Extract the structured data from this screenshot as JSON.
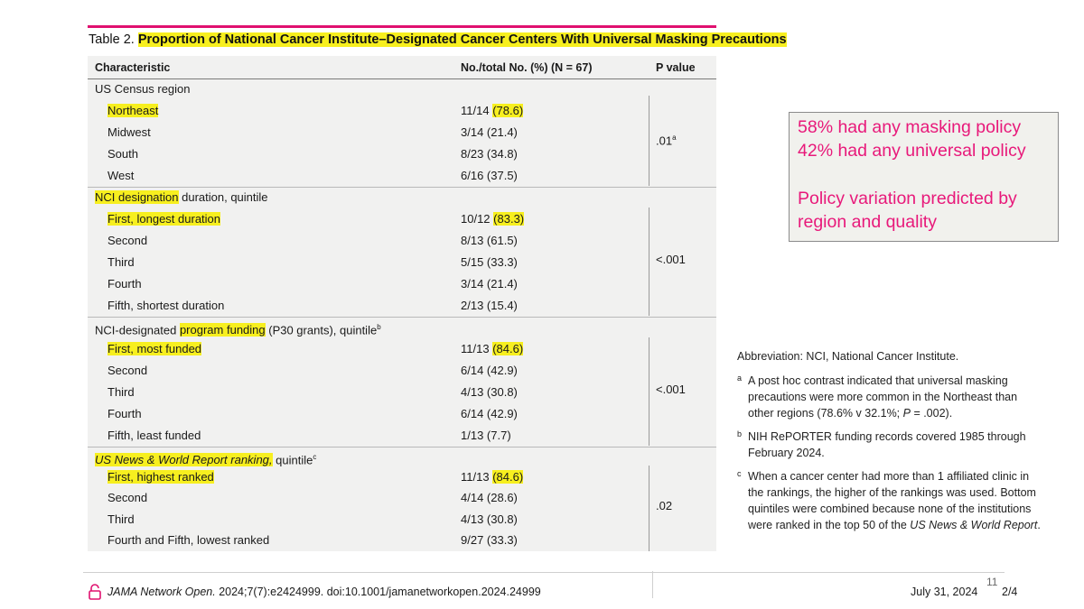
{
  "table": {
    "title_prefix": "Table 2.",
    "title": "Proportion of National Cancer Institute–Designated Cancer Centers With Universal Masking Precautions",
    "headers": {
      "characteristic": "Characteristic",
      "count": "No./total No. (%) (N = 67)",
      "p_value": "P value"
    },
    "groups": {
      "region": {
        "label": "US Census region",
        "p_value": ".01",
        "p_note": "a",
        "rows": [
          {
            "label": "Northeast",
            "count": "11/14",
            "pct": "(78.6)"
          },
          {
            "label": "Midwest",
            "value": "3/14 (21.4)"
          },
          {
            "label": "South",
            "value": "8/23 (34.8)"
          },
          {
            "label": "West",
            "value": "6/16 (37.5)"
          }
        ]
      },
      "duration": {
        "label_hl": "NCI designation",
        "label_rest": " duration, quintile",
        "p_value": "<.001",
        "rows": [
          {
            "label": "First, longest duration",
            "count": "10/12",
            "pct": "(83.3)"
          },
          {
            "label": "Second",
            "value": "8/13 (61.5)"
          },
          {
            "label": "Third",
            "value": "5/15 (33.3)"
          },
          {
            "label": "Fourth",
            "value": "3/14 (21.4)"
          },
          {
            "label": "Fifth, shortest duration",
            "value": "2/13 (15.4)"
          }
        ]
      },
      "funding": {
        "label_pre": "NCI-designated ",
        "label_hl": "program funding",
        "label_rest": " (P30 grants), quintile",
        "label_note": "b",
        "p_value": "<.001",
        "rows": [
          {
            "label": "First, most funded",
            "count": "11/13",
            "pct": "(84.6)"
          },
          {
            "label": "Second",
            "value": "6/14 (42.9)"
          },
          {
            "label": "Third",
            "value": "4/13 (30.8)"
          },
          {
            "label": "Fourth",
            "value": "6/14 (42.9)"
          },
          {
            "label": "Fifth, least funded",
            "value": "1/13 (7.7)"
          }
        ]
      },
      "ranking": {
        "label_hl": "US News & World Report ranking,",
        "label_rest": " quintile",
        "label_note": "c",
        "p_value": ".02",
        "rows": [
          {
            "label": "First, highest ranked",
            "count": "11/13",
            "pct": "(84.6)"
          },
          {
            "label": "Second",
            "value": "4/14 (28.6)"
          },
          {
            "label": "Third",
            "value": "4/13 (30.8)"
          },
          {
            "label": "Fourth and Fifth, lowest ranked",
            "value": "9/27 (33.3)"
          }
        ]
      }
    }
  },
  "callout": {
    "line1": "58% had any masking policy",
    "line2": "42% had any universal policy",
    "line3": "Policy variation predicted by",
    "line4": "region and quality",
    "color": "#e8197a"
  },
  "notes": {
    "abbreviation": "Abbreviation: NCI, National Cancer Institute.",
    "a_mark": "a",
    "a_text": "A post hoc contrast indicated that universal masking precautions were more common in the Northeast than other regions (78.6% v 32.1%; ",
    "a_p": "P",
    "a_tail": " = .002).",
    "b_mark": "b",
    "b_text": "NIH RePORTER funding records covered 1985 through February 2024.",
    "c_mark": "c",
    "c_text": "When a cancer center had more than 1 affiliated clinic in the rankings, the higher of the rankings was used. Bottom quintiles were combined because none of the institutions were ranked in the top 50 of the ",
    "c_italic": "US News & World Report",
    "c_tail": "."
  },
  "footer": {
    "journal": "JAMA Network Open.",
    "citation": " 2024;7(7):e2424999. doi:10.1001/jamanetworkopen.2024.24999",
    "date": "July 31, 2024",
    "page_of": "2/4",
    "page_number": "11"
  },
  "colors": {
    "accent_rule": "#e0106f",
    "highlight": "#f7ef1f",
    "table_bg": "#f1f1f0"
  }
}
